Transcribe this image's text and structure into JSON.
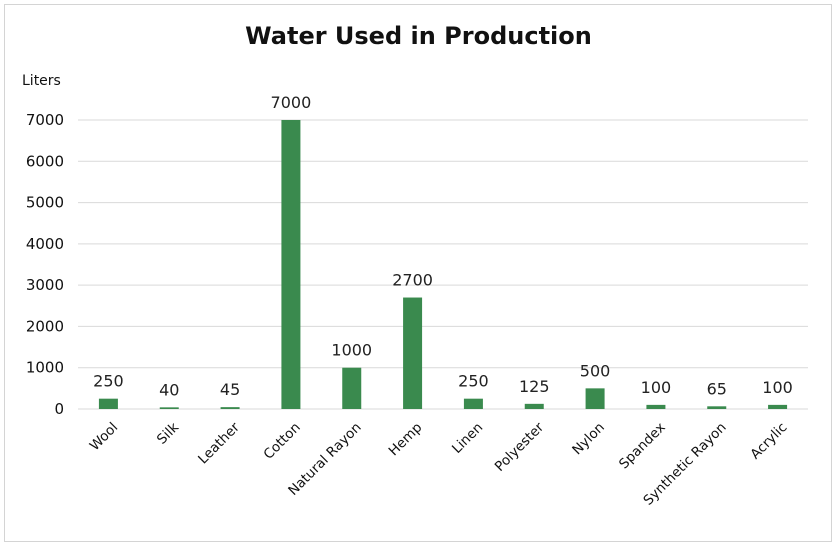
{
  "chart_data": {
    "type": "bar",
    "title": "Water Used in Production",
    "ylabel": "Liters",
    "xlabel": "",
    "categories": [
      "Wool",
      "Silk",
      "Leather",
      "Cotton",
      "Natural Rayon",
      "Hemp",
      "Linen",
      "Polyester",
      "Nylon",
      "Spandex",
      "Synthetic Rayon",
      "Acrylic"
    ],
    "values": [
      250,
      40,
      45,
      7000,
      1000,
      2700,
      250,
      125,
      500,
      100,
      65,
      100
    ],
    "ylim": [
      0,
      7000
    ],
    "yticks": [
      0,
      1000,
      2000,
      3000,
      4000,
      5000,
      6000,
      7000
    ],
    "grid": true,
    "data_labels": true,
    "bar_color": "#3a8a4e",
    "gridline_color": "#d9d9d9"
  }
}
